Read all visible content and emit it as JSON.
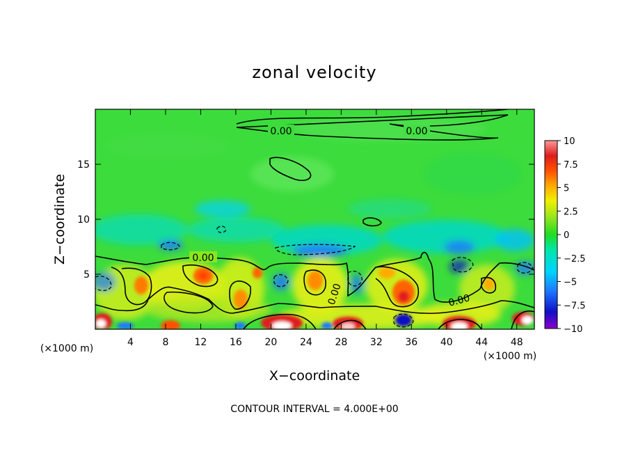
{
  "chart_data": {
    "type": "heatmap",
    "title": "zonal velocity",
    "xlabel": "X−coordinate",
    "ylabel": "Z−coordinate",
    "x_unit": "(×1000 m)",
    "x_unit_right": "(×1000 m)",
    "xlim": [
      0,
      50
    ],
    "ylim": [
      0,
      20
    ],
    "x_ticks": [
      4,
      8,
      12,
      16,
      20,
      24,
      28,
      32,
      36,
      40,
      44,
      48
    ],
    "y_ticks": [
      5,
      10,
      15
    ],
    "colorbar": {
      "ticks": [
        10,
        7.5,
        5,
        2.5,
        0,
        -2.5,
        -5,
        -7.5,
        -10
      ],
      "tick_labels": [
        "10",
        "7.5",
        "5",
        "2.5",
        "0",
        "−2.5",
        "−5",
        "−7.5",
        "−10"
      ],
      "range": [
        -10,
        10
      ],
      "colors": [
        "#8b00c8",
        "#1010c8",
        "#1e78ff",
        "#00d2ff",
        "#00e6aa",
        "#22dc22",
        "#a0e61e",
        "#f0f000",
        "#ffaa00",
        "#ff5000",
        "#dc1e1e",
        "#ff9999"
      ]
    },
    "contour_labels": [
      "0.00",
      "0.00",
      "0.00",
      "0.00",
      "0.00"
    ],
    "contour_interval_text": "CONTOUR INTERVAL = 4.000E+00",
    "grid": false
  }
}
